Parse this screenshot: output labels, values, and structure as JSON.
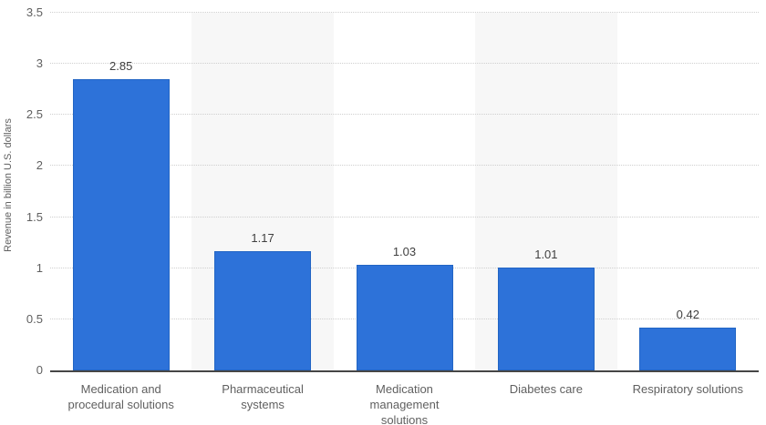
{
  "chart_data": {
    "type": "bar",
    "title": "",
    "xlabel": "",
    "ylabel": "Revenue in billion U.S. dollars",
    "categories": [
      "Medication and\nprocedural solutions",
      "Pharmaceutical\nsystems",
      "Medication\nmanagement\nsolutions",
      "Diabetes care",
      "Respiratory solutions"
    ],
    "values": [
      2.85,
      1.17,
      1.03,
      1.01,
      0.42
    ],
    "value_labels": [
      "2.85",
      "1.17",
      "1.03",
      "1.01",
      "0.42"
    ],
    "ylim": [
      0,
      3.5
    ],
    "yticks": [
      "0",
      "0.5",
      "1",
      "1.5",
      "2",
      "2.5",
      "3",
      "3.5"
    ],
    "grid": "horizontal-dotted",
    "legend": "none",
    "striped_slots": [
      1,
      3
    ],
    "colors": {
      "bar_fill": "#2d72d9",
      "bar_border": "#2265c4",
      "stripe": "#f7f7f7",
      "gridline": "#cfcfcf",
      "axis_line": "#464646",
      "tick_text": "#606060",
      "value_text": "#3f3f3f",
      "category_text": "#606060",
      "background": "#ffffff"
    }
  }
}
